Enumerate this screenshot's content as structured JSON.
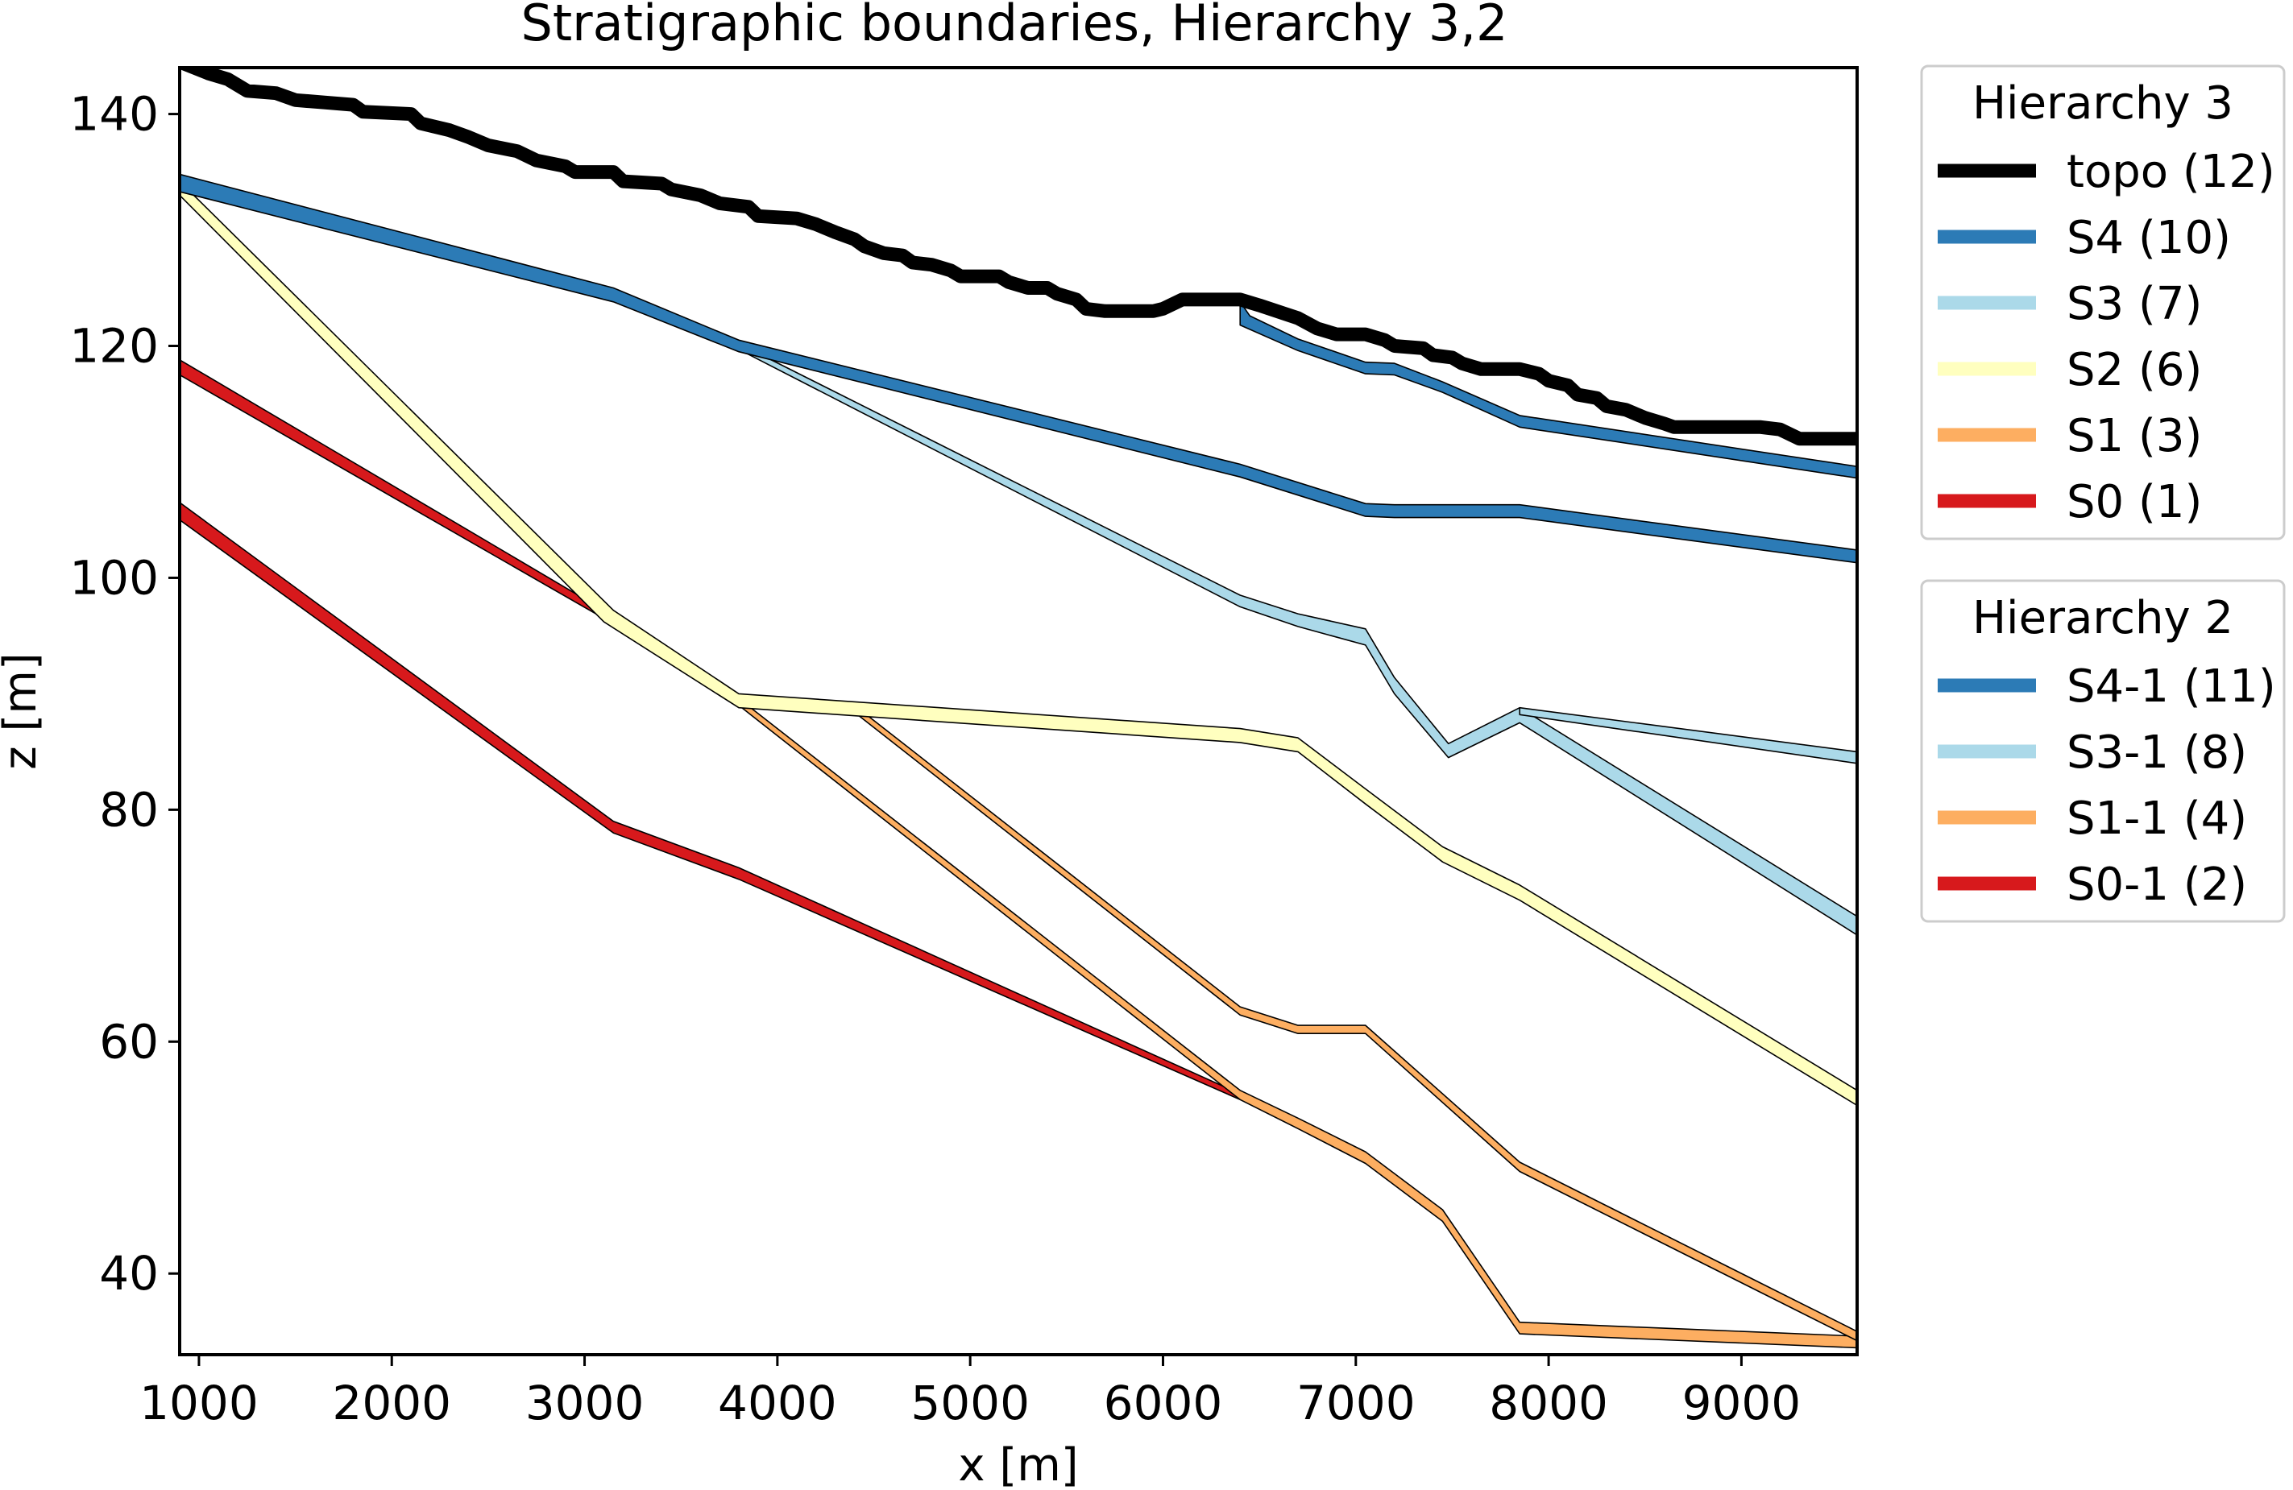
{
  "chart_data": {
    "type": "line",
    "title": "Stratigraphic boundaries, Hierarchy 3,2",
    "xlabel": "x [m]",
    "ylabel": "z [m]",
    "xlim": [
      900,
      9600
    ],
    "ylim": [
      33,
      144
    ],
    "xticks": [
      1000,
      2000,
      3000,
      4000,
      5000,
      6000,
      7000,
      8000,
      9000
    ],
    "yticks": [
      40,
      60,
      80,
      100,
      120,
      140
    ],
    "grid": false,
    "legend_placement": "outside-right",
    "legends": [
      {
        "title": "Hierarchy 3",
        "entries": [
          {
            "label": "topo (12)",
            "color": "#000000"
          },
          {
            "label": "S4 (10)",
            "color": "#2c7bb6"
          },
          {
            "label": "S3 (7)",
            "color": "#abd9e9"
          },
          {
            "label": "S2 (6)",
            "color": "#ffffbf"
          },
          {
            "label": "S1 (3)",
            "color": "#fdae61"
          },
          {
            "label": "S0 (1)",
            "color": "#d7191c"
          }
        ]
      },
      {
        "title": "Hierarchy 2",
        "entries": [
          {
            "label": "S4-1 (11)",
            "color": "#2c7bb6"
          },
          {
            "label": "S3-1 (8)",
            "color": "#abd9e9"
          },
          {
            "label": "S1-1 (4)",
            "color": "#fdae61"
          },
          {
            "label": "S0-1 (2)",
            "color": "#d7191c"
          }
        ]
      }
    ],
    "series": [
      {
        "name": "S0-1 (2)",
        "color": "#d7191c",
        "z": 1,
        "lower": [
          [
            900,
            105
          ],
          [
            3150,
            78
          ],
          [
            3800,
            74
          ],
          [
            6400,
            55
          ]
        ],
        "upper": [
          [
            900,
            106.5
          ],
          [
            3150,
            79
          ],
          [
            3800,
            75
          ],
          [
            6400,
            55.5
          ]
        ]
      },
      {
        "name": "S0 (1)",
        "color": "#d7191c",
        "z": 2,
        "lower": [
          [
            900,
            117.5
          ],
          [
            3100,
            96.5
          ]
        ],
        "upper": [
          [
            900,
            118.8
          ],
          [
            3100,
            97.2
          ]
        ]
      },
      {
        "name": "S1 (3)",
        "color": "#fdae61",
        "z": 3,
        "lower": [
          [
            3800,
            89
          ],
          [
            6400,
            55
          ],
          [
            6700,
            52.5
          ],
          [
            7050,
            49.5
          ],
          [
            7450,
            44.5
          ],
          [
            7850,
            34.8
          ],
          [
            9600,
            33.6
          ]
        ],
        "upper": [
          [
            3800,
            89.6
          ],
          [
            6400,
            55.8
          ],
          [
            6700,
            53.4
          ],
          [
            7050,
            50.5
          ],
          [
            7450,
            45.5
          ],
          [
            7850,
            35.8
          ],
          [
            9600,
            34.6
          ]
        ]
      },
      {
        "name": "S1-1 (4)",
        "color": "#fdae61",
        "z": 4,
        "lower": [
          [
            4400,
            88.4
          ],
          [
            6400,
            62.3
          ],
          [
            6700,
            60.7
          ],
          [
            7050,
            60.7
          ],
          [
            7850,
            48.8
          ],
          [
            9600,
            34.2
          ]
        ],
        "upper": [
          [
            4400,
            89
          ],
          [
            6400,
            63
          ],
          [
            6700,
            61.4
          ],
          [
            7050,
            61.4
          ],
          [
            7850,
            49.6
          ],
          [
            9600,
            35
          ]
        ]
      },
      {
        "name": "S2 (6)",
        "color": "#ffffbf",
        "z": 5,
        "lower": [
          [
            900,
            133
          ],
          [
            3100,
            96.2
          ],
          [
            3800,
            88.8
          ],
          [
            6400,
            85.8
          ],
          [
            6700,
            85
          ],
          [
            7050,
            80.5
          ],
          [
            7450,
            75.5
          ],
          [
            7850,
            72.2
          ],
          [
            9600,
            54.5
          ]
        ],
        "upper": [
          [
            900,
            134.2
          ],
          [
            3150,
            97.2
          ],
          [
            3800,
            90
          ],
          [
            6400,
            87
          ],
          [
            6700,
            86.2
          ],
          [
            7050,
            81.8
          ],
          [
            7450,
            76.8
          ],
          [
            7850,
            73.5
          ],
          [
            9600,
            55.8
          ]
        ]
      },
      {
        "name": "S3 (7)",
        "color": "#abd9e9",
        "z": 6,
        "lower": [
          [
            3800,
            119.7
          ],
          [
            6400,
            97.5
          ],
          [
            6700,
            95.8
          ],
          [
            7050,
            94.2
          ],
          [
            7200,
            90
          ],
          [
            7480,
            84.5
          ],
          [
            7850,
            87.5
          ],
          [
            9600,
            69.2
          ]
        ],
        "upper": [
          [
            3800,
            120.2
          ],
          [
            6400,
            98.5
          ],
          [
            6700,
            96.9
          ],
          [
            7050,
            95.6
          ],
          [
            7200,
            91.4
          ],
          [
            7480,
            85.7
          ],
          [
            7850,
            88.8
          ],
          [
            9600,
            70.8
          ]
        ]
      },
      {
        "name": "S3-1 (8)",
        "color": "#abd9e9",
        "z": 7,
        "lower": [
          [
            7850,
            88.2
          ],
          [
            9600,
            84
          ]
        ],
        "upper": [
          [
            7850,
            88.8
          ],
          [
            9600,
            85
          ]
        ]
      },
      {
        "name": "S4 (10)",
        "color": "#2c7bb6",
        "z": 8,
        "lower": [
          [
            900,
            133.3
          ],
          [
            3150,
            123.8
          ],
          [
            3800,
            119.5
          ],
          [
            6400,
            108.7
          ],
          [
            7050,
            105.3
          ],
          [
            7200,
            105.2
          ],
          [
            7850,
            105.2
          ],
          [
            9600,
            101.3
          ]
        ],
        "upper": [
          [
            900,
            134.8
          ],
          [
            3150,
            125
          ],
          [
            3800,
            120.5
          ],
          [
            6400,
            109.8
          ],
          [
            7050,
            106.4
          ],
          [
            7200,
            106.3
          ],
          [
            7850,
            106.3
          ],
          [
            9600,
            102.4
          ]
        ]
      },
      {
        "name": "S4-1 (11)",
        "color": "#2c7bb6",
        "z": 9,
        "lower": [
          [
            6400,
            121.8
          ],
          [
            6700,
            119.6
          ],
          [
            7050,
            117.6
          ],
          [
            7200,
            117.5
          ],
          [
            7450,
            116
          ],
          [
            7850,
            113
          ],
          [
            9600,
            108.6
          ]
        ],
        "upper": [
          [
            6400,
            123.8
          ],
          [
            6450,
            122.6
          ],
          [
            6700,
            120.6
          ],
          [
            7050,
            118.6
          ],
          [
            7200,
            118.5
          ],
          [
            7450,
            116.9
          ],
          [
            7850,
            114
          ],
          [
            9600,
            109.6
          ]
        ]
      }
    ],
    "topo": {
      "name": "topo (12)",
      "color": "#000000",
      "points": [
        [
          900,
          144.5
        ],
        [
          1050,
          143.5
        ],
        [
          1150,
          143
        ],
        [
          1250,
          142
        ],
        [
          1400,
          141.8
        ],
        [
          1500,
          141.2
        ],
        [
          1650,
          141
        ],
        [
          1800,
          140.8
        ],
        [
          1850,
          140.2
        ],
        [
          2100,
          140
        ],
        [
          2150,
          139.2
        ],
        [
          2300,
          138.6
        ],
        [
          2400,
          138
        ],
        [
          2500,
          137.3
        ],
        [
          2650,
          136.8
        ],
        [
          2750,
          136
        ],
        [
          2900,
          135.5
        ],
        [
          2950,
          135
        ],
        [
          3150,
          135
        ],
        [
          3200,
          134.2
        ],
        [
          3400,
          134
        ],
        [
          3450,
          133.5
        ],
        [
          3600,
          133
        ],
        [
          3700,
          132.3
        ],
        [
          3850,
          132
        ],
        [
          3900,
          131.2
        ],
        [
          4100,
          131
        ],
        [
          4200,
          130.5
        ],
        [
          4300,
          129.8
        ],
        [
          4400,
          129.2
        ],
        [
          4450,
          128.6
        ],
        [
          4550,
          128
        ],
        [
          4650,
          127.8
        ],
        [
          4700,
          127.2
        ],
        [
          4800,
          127
        ],
        [
          4900,
          126.5
        ],
        [
          4950,
          126
        ],
        [
          5150,
          126
        ],
        [
          5200,
          125.5
        ],
        [
          5300,
          125
        ],
        [
          5400,
          125
        ],
        [
          5450,
          124.5
        ],
        [
          5550,
          124
        ],
        [
          5600,
          123.2
        ],
        [
          5700,
          123
        ],
        [
          5950,
          123
        ],
        [
          6000,
          123.2
        ],
        [
          6100,
          124
        ],
        [
          6400,
          124
        ],
        [
          6500,
          123.5
        ],
        [
          6700,
          122.4
        ],
        [
          6800,
          121.5
        ],
        [
          6900,
          121
        ],
        [
          7050,
          121
        ],
        [
          7150,
          120.5
        ],
        [
          7200,
          120
        ],
        [
          7350,
          119.8
        ],
        [
          7400,
          119.2
        ],
        [
          7500,
          119
        ],
        [
          7550,
          118.5
        ],
        [
          7650,
          118
        ],
        [
          7850,
          118
        ],
        [
          7950,
          117.6
        ],
        [
          8000,
          117
        ],
        [
          8100,
          116.6
        ],
        [
          8150,
          115.8
        ],
        [
          8250,
          115.5
        ],
        [
          8300,
          114.8
        ],
        [
          8400,
          114.5
        ],
        [
          8500,
          113.8
        ],
        [
          8600,
          113.3
        ],
        [
          8650,
          113
        ],
        [
          8800,
          113
        ],
        [
          9100,
          113
        ],
        [
          9200,
          112.8
        ],
        [
          9300,
          112
        ],
        [
          9600,
          112
        ]
      ]
    }
  }
}
